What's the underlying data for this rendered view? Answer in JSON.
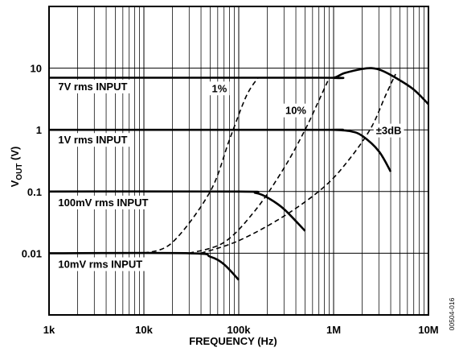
{
  "chart_data": {
    "type": "line",
    "xlabel": "FREQUENCY (Hz)",
    "ylabel": "VOUT (V)",
    "ylabel_main": "V",
    "ylabel_sub": "OUT",
    "ylabel_suffix": " (V)",
    "x_scale": "log",
    "y_scale": "log",
    "xlim": [
      1000,
      10000000
    ],
    "ylim": [
      0.001,
      100
    ],
    "grid": true,
    "x_ticks": [
      {
        "value": 1000,
        "label": "1k"
      },
      {
        "value": 10000,
        "label": "10k"
      },
      {
        "value": 100000,
        "label": "100k"
      },
      {
        "value": 1000000,
        "label": "1M"
      },
      {
        "value": 10000000,
        "label": "10M"
      }
    ],
    "y_ticks": [
      {
        "value": 0.01,
        "label": "0.01"
      },
      {
        "value": 0.1,
        "label": "0.1"
      },
      {
        "value": 1,
        "label": "1"
      },
      {
        "value": 10,
        "label": "10"
      }
    ],
    "series": [
      {
        "name": "7V rms INPUT",
        "style": "solid",
        "x": [
          1000,
          700000,
          1000000,
          1300000,
          2000000,
          2500000,
          3200000,
          4500000,
          7000000,
          10000000
        ],
        "y": [
          7,
          7,
          7,
          8.3,
          9.7,
          10,
          9.2,
          7,
          4.5,
          2.6
        ]
      },
      {
        "name": "1V rms INPUT",
        "style": "solid",
        "x": [
          1000,
          700000,
          1000000,
          1500000,
          2000000,
          3000000,
          4000000
        ],
        "y": [
          1,
          1,
          1,
          0.95,
          0.8,
          0.45,
          0.21
        ]
      },
      {
        "name": "100mV rms INPUT",
        "style": "solid",
        "x": [
          1000,
          100000,
          150000,
          200000,
          300000,
          500000
        ],
        "y": [
          0.1,
          0.1,
          0.095,
          0.08,
          0.052,
          0.023
        ]
      },
      {
        "name": "10mV rms INPUT",
        "style": "solid",
        "x": [
          1000,
          30000,
          50000,
          70000,
          100000
        ],
        "y": [
          0.01,
          0.01,
          0.0088,
          0.0066,
          0.0037
        ]
      },
      {
        "name": "1%",
        "style": "dashed",
        "x": [
          10000,
          20000,
          50000,
          80000,
          120000,
          160000
        ],
        "y": [
          0.01,
          0.015,
          0.1,
          0.7,
          3.5,
          7
        ]
      },
      {
        "name": "10%",
        "style": "dashed",
        "x": [
          30000,
          70000,
          150000,
          300000,
          500000,
          700000,
          900000
        ],
        "y": [
          0.01,
          0.015,
          0.05,
          0.24,
          1,
          3,
          7
        ]
      },
      {
        "name": "±3dB",
        "style": "dashed",
        "x": [
          40000,
          100000,
          300000,
          800000,
          1500000,
          2500000,
          3500000,
          4500000
        ],
        "y": [
          0.01,
          0.016,
          0.04,
          0.12,
          0.35,
          1.1,
          3.5,
          8
        ]
      }
    ],
    "annotations": [
      {
        "text": "7V rms INPUT",
        "x": 1250,
        "y": 4.4
      },
      {
        "text": "1V rms INPUT",
        "x": 1250,
        "y": 0.6
      },
      {
        "text": "100mV rms INPUT",
        "x": 1250,
        "y": 0.058
      },
      {
        "text": "10mV rms INPUT",
        "x": 1250,
        "y": 0.0058
      },
      {
        "text": "1%",
        "x": 52000,
        "y": 4.1
      },
      {
        "text": "10%",
        "x": 310000,
        "y": 1.8
      },
      {
        "text": "±3dB",
        "x": 2800000,
        "y": 0.85
      }
    ]
  },
  "figure_id": "00504-016"
}
